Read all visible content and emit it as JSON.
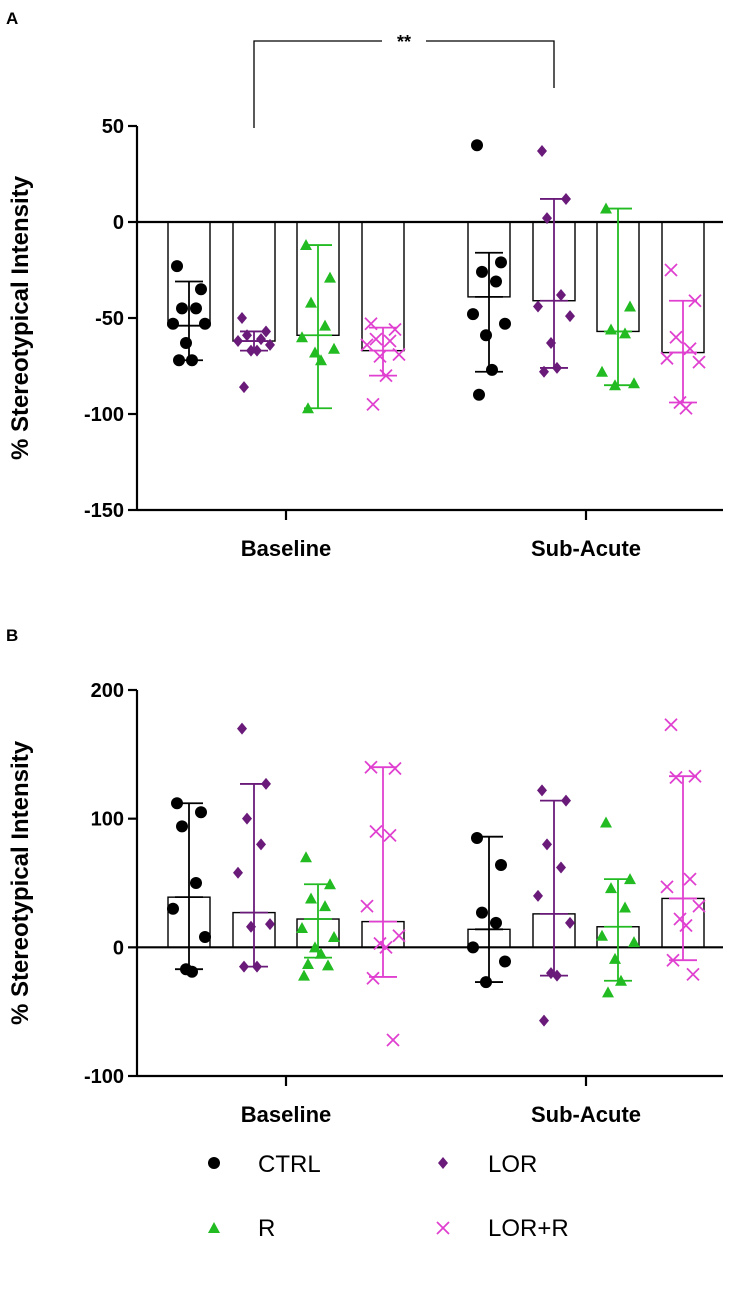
{
  "colors": {
    "CTRL": "#000000",
    "R": "#22bb22",
    "LOR": "#6a1b7a",
    "LOR+R": "#e040d0"
  },
  "legend": [
    {
      "name": "CTRL",
      "marker": "circle"
    },
    {
      "name": "LOR",
      "marker": "diamond"
    },
    {
      "name": "R",
      "marker": "triangle"
    },
    {
      "name": "LOR+R",
      "marker": "cross"
    }
  ],
  "chart_data": [
    {
      "panel": "A",
      "type": "bar",
      "ylabel": "% Stereotypical Intensity",
      "ylim": [
        -150,
        50
      ],
      "yticks": [
        50,
        0,
        -50,
        -100,
        -150
      ],
      "categories": [
        "Baseline",
        "Sub-Acute"
      ],
      "significance": {
        "label": "**",
        "from": [
          "Baseline",
          "LOR"
        ],
        "to": [
          "Sub-Acute",
          "LOR"
        ]
      },
      "series": [
        {
          "name": "CTRL",
          "means": [
            -54,
            -39
          ],
          "ranges": [
            [
              -72,
              -31
            ],
            [
              -78,
              -16
            ]
          ],
          "points": [
            [
              -23,
              -35,
              -45,
              -45,
              -53,
              -53,
              -63,
              -72,
              -72
            ],
            [
              40,
              -21,
              -26,
              -31,
              -48,
              -53,
              -59,
              -77,
              -90
            ]
          ]
        },
        {
          "name": "LOR",
          "means": [
            -62,
            -41
          ],
          "ranges": [
            [
              -67,
              -57
            ],
            [
              -76,
              12
            ]
          ],
          "points": [
            [
              -50,
              -57,
              -59,
              -61,
              -62,
              -64,
              -67,
              -67,
              -86
            ],
            [
              37,
              12,
              2,
              -38,
              -44,
              -49,
              -63,
              -76,
              -78
            ]
          ]
        },
        {
          "name": "R",
          "means": [
            -59,
            -57
          ],
          "ranges": [
            [
              -97,
              -12
            ],
            [
              -85,
              7
            ]
          ],
          "points": [
            [
              -12,
              -29,
              -42,
              -54,
              -60,
              -66,
              -68,
              -72,
              -97
            ],
            [
              7,
              -44,
              -56,
              -58,
              -78,
              -84,
              -85
            ]
          ]
        },
        {
          "name": "LOR+R",
          "means": [
            -67,
            -68
          ],
          "ranges": [
            [
              -80,
              -55
            ],
            [
              -94,
              -41
            ]
          ],
          "points": [
            [
              -53,
              -56,
              -61,
              -62,
              -64,
              -69,
              -70,
              -80,
              -95
            ],
            [
              -25,
              -41,
              -60,
              -66,
              -71,
              -73,
              -94,
              -97
            ]
          ]
        }
      ]
    },
    {
      "panel": "B",
      "type": "bar",
      "ylabel": "% Stereotypical Intensity",
      "ylim": [
        -100,
        200
      ],
      "yticks": [
        200,
        100,
        0,
        -100
      ],
      "categories": [
        "Baseline",
        "Sub-Acute"
      ],
      "series": [
        {
          "name": "CTRL",
          "means": [
            39,
            14
          ],
          "ranges": [
            [
              -17,
              112
            ],
            [
              -27,
              86
            ]
          ],
          "points": [
            [
              112,
              105,
              94,
              50,
              30,
              8,
              -17,
              -19
            ],
            [
              85,
              64,
              27,
              19,
              0,
              -11,
              -27
            ]
          ]
        },
        {
          "name": "LOR",
          "means": [
            27,
            26
          ],
          "ranges": [
            [
              -15,
              127
            ],
            [
              -22,
              114
            ]
          ],
          "points": [
            [
              170,
              127,
              100,
              80,
              58,
              18,
              16,
              -15,
              -15
            ],
            [
              122,
              114,
              80,
              62,
              40,
              19,
              -20,
              -22,
              -57
            ]
          ]
        },
        {
          "name": "R",
          "means": [
            22,
            16
          ],
          "ranges": [
            [
              -8,
              49
            ],
            [
              -26,
              53
            ]
          ],
          "points": [
            [
              70,
              49,
              38,
              32,
              15,
              8,
              0,
              -5,
              -13,
              -14,
              -22
            ],
            [
              97,
              53,
              46,
              31,
              9,
              4,
              -9,
              -26,
              -35
            ]
          ]
        },
        {
          "name": "LOR+R",
          "means": [
            20,
            38
          ],
          "ranges": [
            [
              -23,
              140
            ],
            [
              -10,
              133
            ]
          ],
          "points": [
            [
              140,
              139,
              90,
              87,
              32,
              9,
              3,
              0,
              -24,
              -72
            ],
            [
              173,
              133,
              132,
              53,
              47,
              32,
              22,
              17,
              -10,
              -21
            ]
          ]
        }
      ]
    }
  ]
}
